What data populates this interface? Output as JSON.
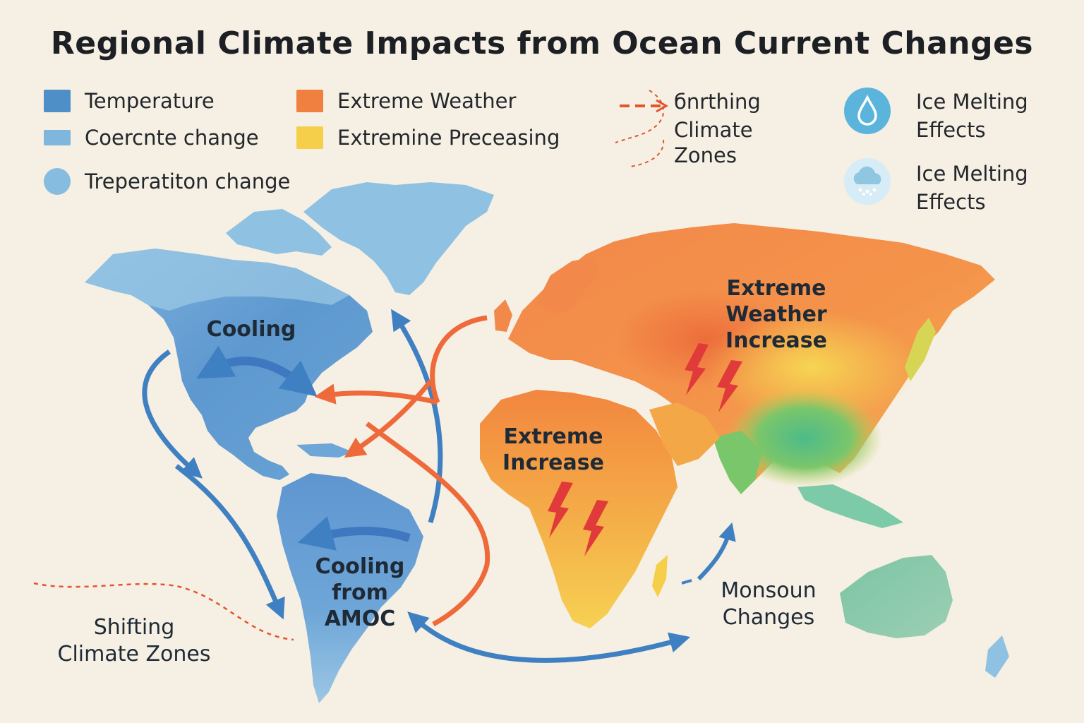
{
  "title": "Regional Climate Impacts from Ocean Current Changes",
  "legend": {
    "temperature": "Temperature",
    "coercnte": "Coercnte change",
    "treperatiton": "Treperatiton change",
    "extreme_weather": "Extreme Weather",
    "extremine": "Extremine Preceasing",
    "shifting_title": "бnrthing",
    "shifting_climate": "Climate",
    "shifting_zones": "Zones",
    "ice_melting_1": "Ice Melting",
    "ice_melting_1b": "Effects",
    "ice_melting_2": "Ice Melting",
    "ice_melting_2b": "Effects"
  },
  "colors": {
    "temperature": "#4f8fc7",
    "coercnte": "#7fb6de",
    "treperatiton": "#86bcdf",
    "extreme_weather": "#f0803f",
    "extremine": "#f6cf4a",
    "cool_arrow": "#3f80c2",
    "warm_arrow": "#ee6a3a"
  },
  "labels": {
    "cooling": "Cooling",
    "cooling_amoc_1": "Cooling",
    "cooling_amoc_2": "from",
    "cooling_amoc_3": "AMOC",
    "extreme_increase_1": "Extreme",
    "extreme_increase_2": "Increase",
    "extreme_weather_increase_1": "Extreme",
    "extreme_weather_increase_2": "Weather",
    "extreme_weather_increase_3": "Increase",
    "monsoon_1": "Monsoun",
    "monsoon_2": "Changes",
    "shifting_1": "Shifting",
    "shifting_2": "Climate Zones"
  },
  "icons": {
    "drop": "water-drop-icon",
    "cloud": "snow-cloud-icon",
    "bolt": "lightning-icon"
  }
}
